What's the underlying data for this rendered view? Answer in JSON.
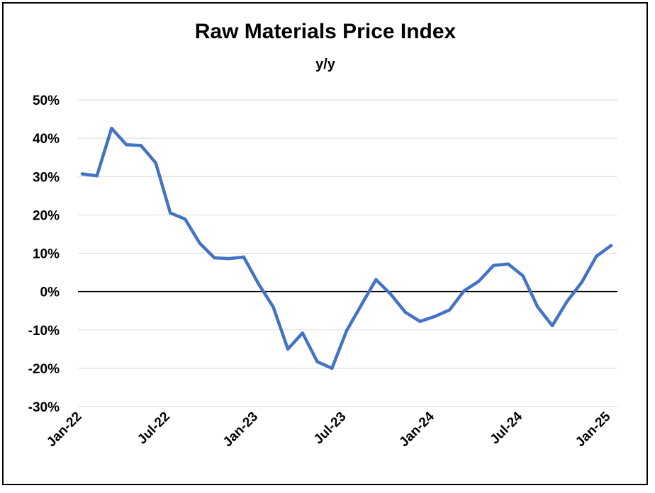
{
  "chart_data": {
    "type": "line",
    "title": "Raw Materials Price Index",
    "subtitle": "y/y",
    "xlabel": "",
    "ylabel": "",
    "ylim": [
      -30,
      50
    ],
    "yticks": [
      50,
      40,
      30,
      20,
      10,
      0,
      -10,
      -20,
      -30
    ],
    "ytick_labels": [
      "50%",
      "40%",
      "30%",
      "20%",
      "10%",
      "0%",
      "-10%",
      "-20%",
      "-30%"
    ],
    "xtick_labels": [
      "Jan-22",
      "Jul-22",
      "Jan-23",
      "Jul-23",
      "Jan-24",
      "Jul-24",
      "Jan-25"
    ],
    "grid": true,
    "series": [
      {
        "name": "Raw Materials Price Index y/y",
        "color": "#4472C4",
        "values": [
          30.7,
          30.2,
          42.6,
          38.3,
          38.1,
          33.6,
          20.5,
          18.9,
          12.6,
          8.8,
          8.6,
          9.0,
          2.0,
          -4.0,
          -15.0,
          -10.8,
          -18.3,
          -20.0,
          -10.2,
          -3.5,
          3.1,
          -0.7,
          -5.4,
          -7.8,
          -6.5,
          -4.8,
          0.2,
          2.7,
          6.8,
          7.2,
          4.1,
          -4.0,
          -8.9,
          -2.6,
          2.4,
          9.2,
          12.0
        ]
      }
    ],
    "zero_line_color": "#000000",
    "grid_color": "#d9d9d9"
  }
}
